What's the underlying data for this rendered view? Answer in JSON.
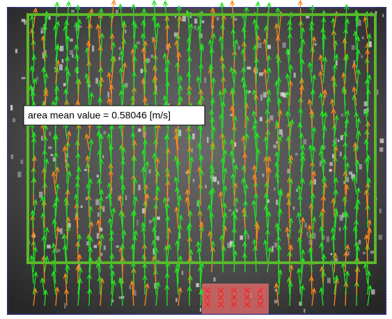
{
  "annotation": {
    "label": "area mean value = 0.58046 [m/s]"
  }
}
